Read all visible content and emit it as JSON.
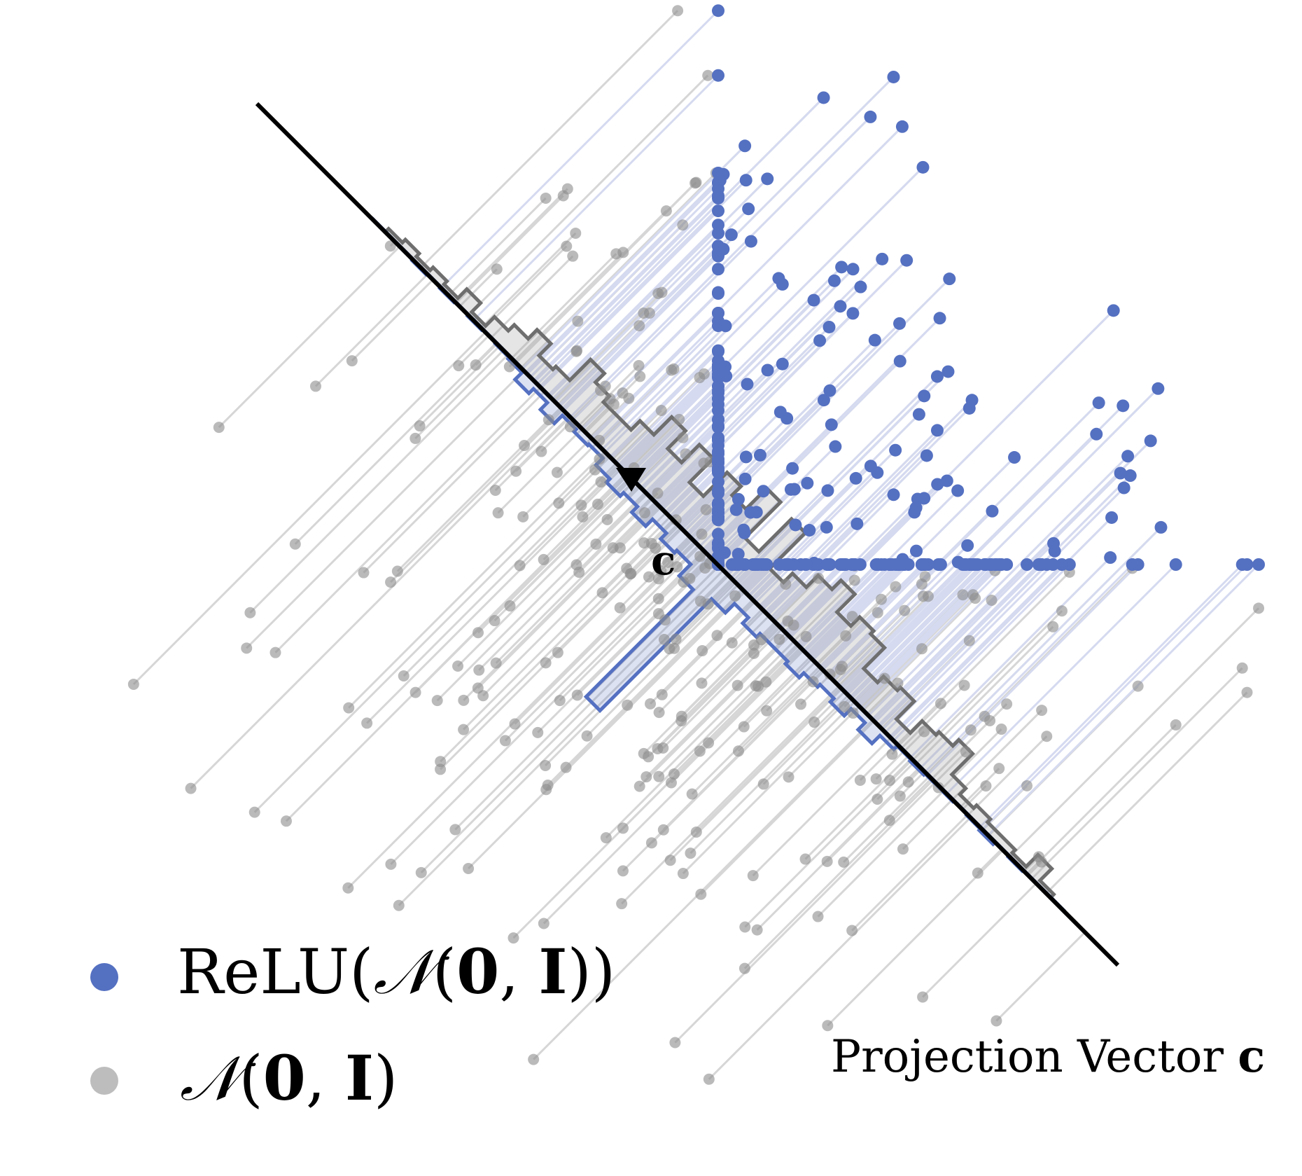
{
  "legend": {
    "items": [
      {
        "parts": [
          "ReLU(",
          "𝒩",
          "(",
          "0",
          ", ",
          "I",
          "))"
        ]
      },
      {
        "parts": [
          "𝒩",
          "(",
          "0",
          ", ",
          "I",
          ")"
        ]
      }
    ]
  },
  "annotations": {
    "vector_label": "c",
    "axis_caption": [
      "Projection Vector ",
      "c"
    ]
  }
}
